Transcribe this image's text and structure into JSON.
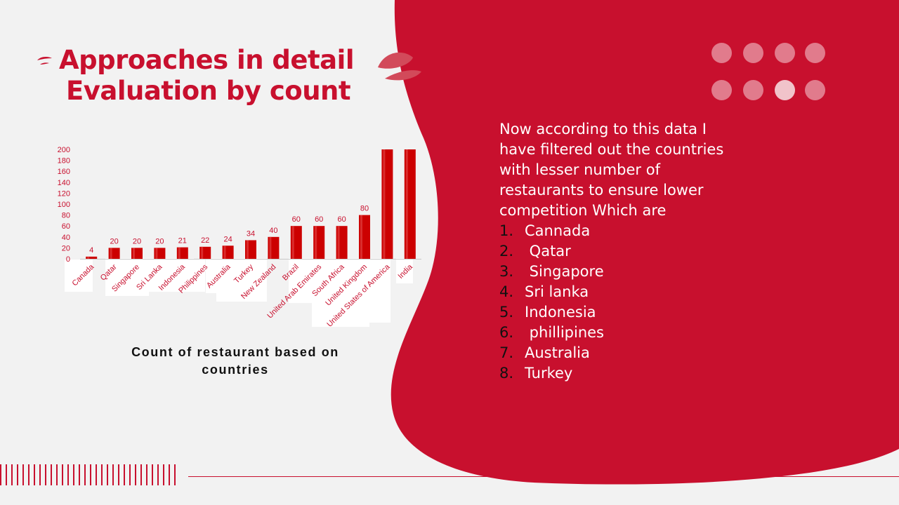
{
  "slide": {
    "title_line1": "Approaches in detail",
    "title_line2": "Evaluation by count",
    "caption": "Count of restaurant based on countries",
    "intro": "Now according to this data I have filtered out the countries with lesser number of restaurants  to ensure lower competition Which are",
    "list": [
      {
        "num": "1.",
        "text": "Cannada"
      },
      {
        "num": "2.",
        "text": " Qatar"
      },
      {
        "num": "3.",
        "text": " Singapore"
      },
      {
        "num": "4.",
        "text": "Sri lanka"
      },
      {
        "num": "5.",
        "text": "Indonesia"
      },
      {
        "num": "6.",
        "text": " phillipines"
      },
      {
        "num": "7.",
        "text": "Australia"
      },
      {
        "num": "8.",
        "text": "Turkey"
      }
    ]
  },
  "colors": {
    "accent": "#c8102e",
    "bar": "#cc0000",
    "background": "#f2f2f2"
  },
  "chart_data": {
    "type": "bar",
    "title": "",
    "xlabel": "",
    "ylabel": "",
    "ylim": [
      0,
      200
    ],
    "yticks": [
      0,
      20,
      40,
      60,
      80,
      100,
      120,
      140,
      160,
      180,
      200
    ],
    "categories": [
      "Canada",
      "Qatar",
      "Singapore",
      "Sri Lanka",
      "Indonesia",
      "Philippines",
      "Australia",
      "Turkey",
      "New Zealand",
      "Brazil",
      "United Arab Emirates",
      "South Africa",
      "United Kingdom",
      "United States of America",
      "India"
    ],
    "values": [
      4,
      20,
      20,
      20,
      21,
      22,
      24,
      34,
      40,
      60,
      60,
      60,
      80,
      200,
      200
    ],
    "data_labels": [
      "4",
      "20",
      "20",
      "20",
      "21",
      "22",
      "24",
      "34",
      "40",
      "60",
      "60",
      "60",
      "80",
      "",
      ""
    ],
    "grid": false,
    "legend": "none"
  }
}
